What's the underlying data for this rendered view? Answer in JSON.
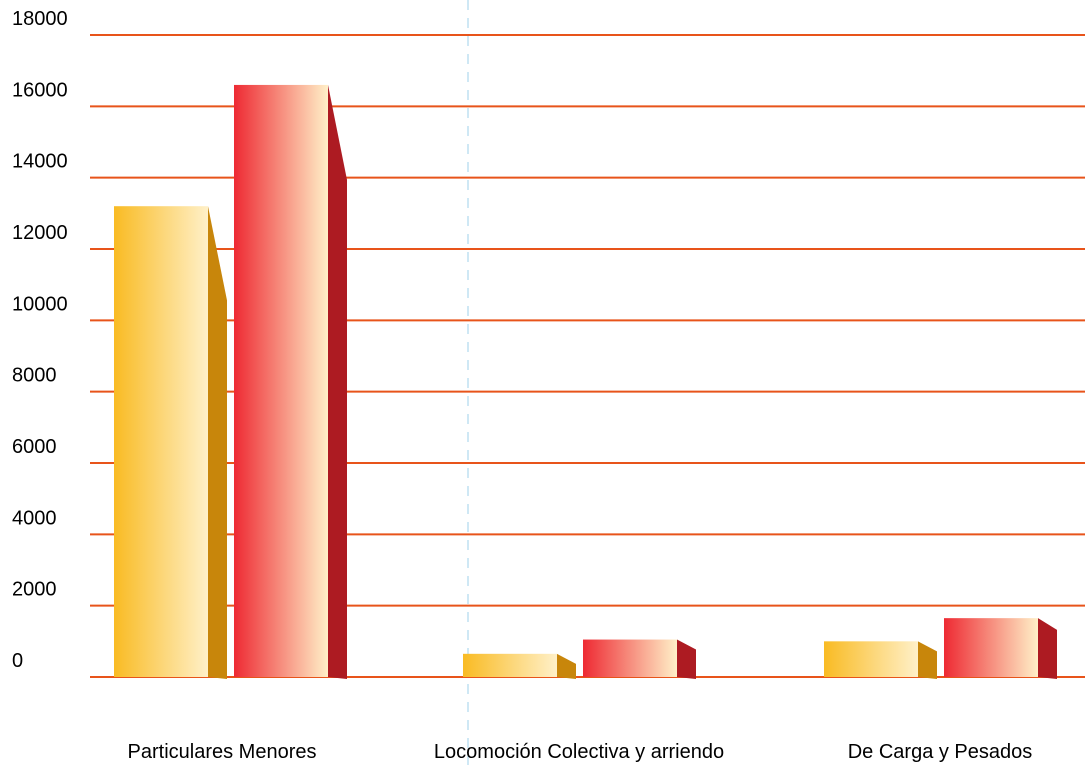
{
  "chart_data": {
    "type": "bar",
    "categories": [
      "Particulares Menores",
      "Locomoción Colectiva y arriendo",
      "De Carga y Pesados"
    ],
    "series": [
      {
        "values": [
          13200,
          650,
          1000
        ],
        "color": "#f9bb23",
        "light": "#fff0c8",
        "side": "#c8860b"
      },
      {
        "values": [
          16600,
          1050,
          1650
        ],
        "color": "#ee2a33",
        "light": "#fff0c8",
        "side": "#ad1b22"
      }
    ],
    "ylim": [
      0,
      18000
    ],
    "y_ticks": [
      "18000",
      "16000",
      "14000",
      "12000",
      "10000",
      "8000",
      "6000",
      "4000",
      "2000",
      "0"
    ],
    "grid": true,
    "grid_color": "#e8541a",
    "separator_color": "#cfe8f5"
  }
}
